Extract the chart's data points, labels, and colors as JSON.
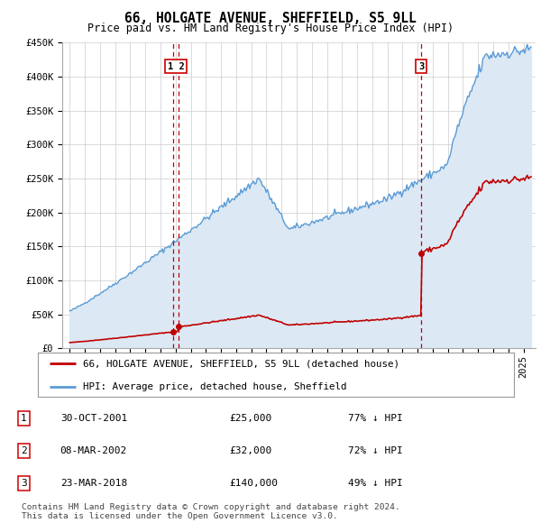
{
  "title": "66, HOLGATE AVENUE, SHEFFIELD, S5 9LL",
  "subtitle": "Price paid vs. HM Land Registry's House Price Index (HPI)",
  "ylim": [
    0,
    450000
  ],
  "yticks": [
    0,
    50000,
    100000,
    150000,
    200000,
    250000,
    300000,
    350000,
    400000,
    450000
  ],
  "ytick_labels": [
    "£0",
    "£50K",
    "£100K",
    "£150K",
    "£200K",
    "£250K",
    "£300K",
    "£350K",
    "£400K",
    "£450K"
  ],
  "hpi_color": "#5b9bd5",
  "hpi_fill_color": "#dce9f5",
  "price_color": "#c00000",
  "vline_color": "#c00000",
  "transactions": [
    {
      "date_num": 2001.83,
      "price": 25000,
      "label": "1",
      "date_str": "30-OCT-2001"
    },
    {
      "date_num": 2002.19,
      "price": 32000,
      "label": "2",
      "date_str": "08-MAR-2002"
    },
    {
      "date_num": 2018.23,
      "price": 140000,
      "label": "3",
      "date_str": "23-MAR-2018"
    }
  ],
  "legend_entries": [
    {
      "label": "66, HOLGATE AVENUE, SHEFFIELD, S5 9LL (detached house)",
      "color": "#c00000"
    },
    {
      "label": "HPI: Average price, detached house, Sheffield",
      "color": "#5b9bd5"
    }
  ],
  "table_rows": [
    {
      "num": "1",
      "date": "30-OCT-2001",
      "price": "£25,000",
      "note": "77% ↓ HPI"
    },
    {
      "num": "2",
      "date": "08-MAR-2002",
      "price": "£32,000",
      "note": "72% ↓ HPI"
    },
    {
      "num": "3",
      "date": "23-MAR-2018",
      "price": "£140,000",
      "note": "49% ↓ HPI"
    }
  ],
  "footnote": "Contains HM Land Registry data © Crown copyright and database right 2024.\nThis data is licensed under the Open Government Licence v3.0.",
  "background_color": "#ffffff",
  "grid_color": "#cccccc",
  "xmin": 1994.5,
  "xmax": 2025.8
}
